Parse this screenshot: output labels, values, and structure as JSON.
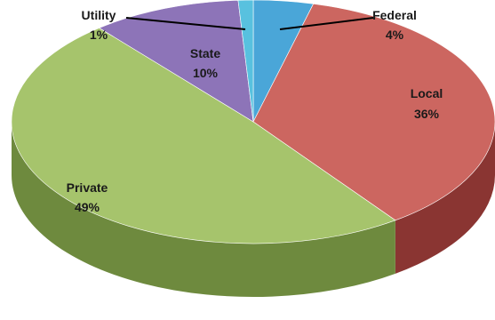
{
  "chart_data": {
    "type": "pie",
    "title": "",
    "three_d": true,
    "start_angle_deg": 90,
    "direction": "clockwise",
    "slices": [
      {
        "name": "Federal",
        "value": 4,
        "value_label": "4%",
        "color": "#4aa6d8",
        "side": "#2f7fa8"
      },
      {
        "name": "Local",
        "value": 36,
        "value_label": "36%",
        "color": "#cc6660",
        "side": "#8a3532"
      },
      {
        "name": "Private",
        "value": 49,
        "value_label": "49%",
        "color": "#a6c46c",
        "side": "#6e8a3e"
      },
      {
        "name": "State",
        "value": 10,
        "value_label": "10%",
        "color": "#8d74b8",
        "side": "#5e4a85"
      },
      {
        "name": "Utility",
        "value": 1,
        "value_label": "1%",
        "color": "#58c1df",
        "side": "#3a93ad"
      }
    ]
  }
}
